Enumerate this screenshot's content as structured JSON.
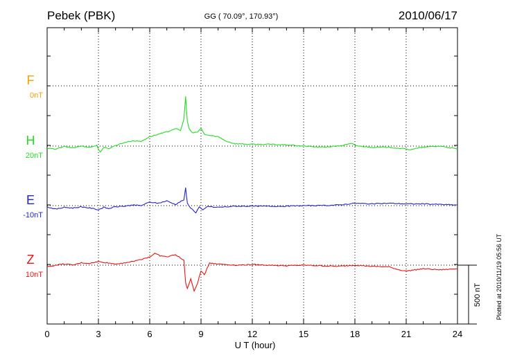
{
  "header": {
    "station": "Pebek (PBK)",
    "coords": "GG ( 70.09°, 170.93°)",
    "date": "2010/06/17"
  },
  "side_note": "Plotted at 2010/11/19 05:56 UT",
  "scale_label": "500 nT",
  "chart_data": {
    "type": "line",
    "xlabel": "U T (hour)",
    "xlim": [
      0,
      24
    ],
    "x_ticks": [
      "0",
      "3",
      "6",
      "9",
      "12",
      "15",
      "18",
      "21",
      "24"
    ],
    "scale_bar_nT": 500,
    "series": [
      {
        "name": "F",
        "offset_label": "0nT",
        "color": "#f5a000",
        "x": [],
        "values": []
      },
      {
        "name": "H",
        "offset_label": "20nT",
        "color": "#22dd22",
        "x": [
          0,
          0.5,
          1.0,
          1.5,
          2.0,
          2.5,
          2.9,
          3.1,
          3.3,
          3.6,
          4.0,
          4.5,
          5.0,
          5.5,
          6.0,
          6.5,
          7.0,
          7.5,
          7.8,
          8.0,
          8.1,
          8.2,
          8.3,
          8.5,
          8.8,
          9.0,
          9.2,
          9.5,
          10.0,
          10.5,
          11.0,
          12.0,
          13.0,
          14.0,
          15.0,
          16.0,
          17.0,
          17.8,
          18.2,
          19.0,
          20.0,
          20.7,
          21.2,
          22.0,
          23.0,
          24.0
        ],
        "values": [
          -20,
          -25,
          -5,
          -15,
          0,
          -10,
          5,
          -50,
          -15,
          -20,
          5,
          30,
          45,
          40,
          80,
          100,
          120,
          150,
          130,
          230,
          420,
          210,
          150,
          110,
          120,
          150,
          100,
          90,
          80,
          40,
          20,
          15,
          15,
          10,
          0,
          -10,
          0,
          20,
          0,
          -10,
          -10,
          -20,
          -30,
          -10,
          0,
          -25
        ]
      },
      {
        "name": "E",
        "offset_label": "-10nT",
        "color": "#2222cc",
        "x": [
          0,
          0.5,
          1.0,
          1.5,
          2.0,
          2.5,
          3.0,
          3.3,
          3.6,
          4.0,
          4.5,
          5.0,
          5.5,
          6.0,
          6.5,
          7.0,
          7.5,
          8.0,
          8.1,
          8.2,
          8.4,
          8.7,
          8.9,
          9.1,
          9.4,
          9.8,
          10.5,
          11.0,
          12.0,
          13.0,
          14.0,
          15.0,
          16.0,
          17.0,
          18.0,
          19.0,
          20.0,
          21.0,
          22.0,
          23.0,
          24.0
        ],
        "values": [
          -10,
          -30,
          -15,
          -20,
          -10,
          -20,
          -35,
          -15,
          -25,
          -10,
          -5,
          5,
          0,
          30,
          20,
          40,
          10,
          50,
          150,
          20,
          -20,
          -60,
          -10,
          -40,
          -5,
          -15,
          -10,
          -5,
          -5,
          -5,
          -5,
          0,
          0,
          5,
          20,
          15,
          20,
          15,
          15,
          10,
          5
        ]
      },
      {
        "name": "Z",
        "offset_label": "10nT",
        "color": "#ee1111",
        "x": [
          0,
          0.5,
          1.0,
          1.5,
          2.0,
          2.5,
          3.0,
          3.5,
          4.0,
          4.5,
          5.0,
          5.5,
          6.0,
          6.3,
          6.6,
          7.0,
          7.5,
          7.8,
          8.0,
          8.1,
          8.2,
          8.4,
          8.6,
          8.8,
          9.0,
          9.2,
          9.5,
          10.0,
          11.0,
          12.0,
          13.0,
          14.0,
          15.0,
          16.0,
          17.0,
          18.0,
          19.0,
          20.0,
          20.6,
          21.0,
          22.0,
          23.0,
          24.0
        ],
        "values": [
          -15,
          0,
          10,
          0,
          20,
          15,
          30,
          20,
          10,
          20,
          30,
          50,
          70,
          100,
          80,
          70,
          90,
          60,
          40,
          -150,
          -200,
          -120,
          -220,
          -150,
          -50,
          -80,
          20,
          10,
          0,
          5,
          0,
          -5,
          0,
          -5,
          -10,
          0,
          -10,
          -15,
          -40,
          -50,
          -30,
          -40,
          -30
        ]
      }
    ]
  }
}
